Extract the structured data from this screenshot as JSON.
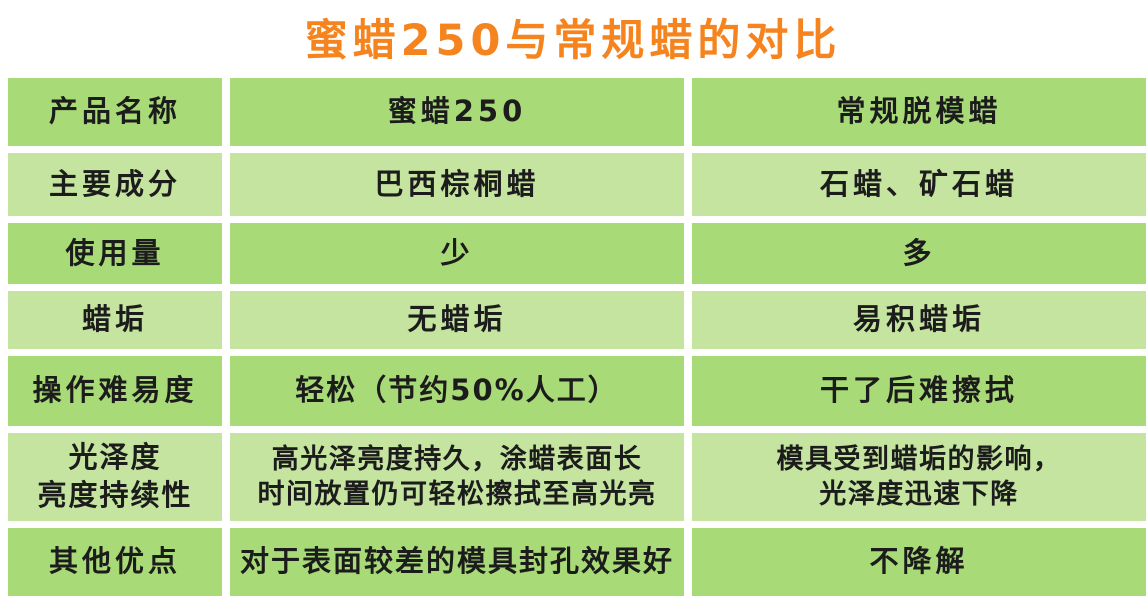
{
  "title": "蜜蜡250与常规蜡的对比",
  "colors": {
    "title_orange": "#F5841E",
    "row_dark_green": "#A8DA78",
    "row_light_green": "#C5E4A0",
    "text_dark": "#1C1C1C",
    "background": "#FFFFFF"
  },
  "table": {
    "rows": [
      {
        "cells": [
          "产品名称",
          "蜜蜡250",
          "常规脱模蜡"
        ]
      },
      {
        "cells": [
          "主要成分",
          "巴西棕桐蜡",
          "石蜡、矿石蜡"
        ]
      },
      {
        "cells": [
          "使用量",
          "少",
          "多"
        ]
      },
      {
        "cells": [
          "蜡垢",
          "无蜡垢",
          "易积蜡垢"
        ]
      },
      {
        "cells": [
          "操作难易度",
          "轻松（节约50%人工）",
          "干了后难擦拭"
        ]
      },
      {
        "cells": [
          "光泽度\n亮度持续性",
          "高光泽亮度持久，涂蜡表面长\n时间放置仍可轻松擦拭至高光亮",
          "模具受到蜡垢的影响，\n光泽度迅速下降"
        ]
      },
      {
        "cells": [
          "其他优点",
          "对于表面较差的模具封孔效果好",
          "不降解"
        ]
      }
    ]
  }
}
